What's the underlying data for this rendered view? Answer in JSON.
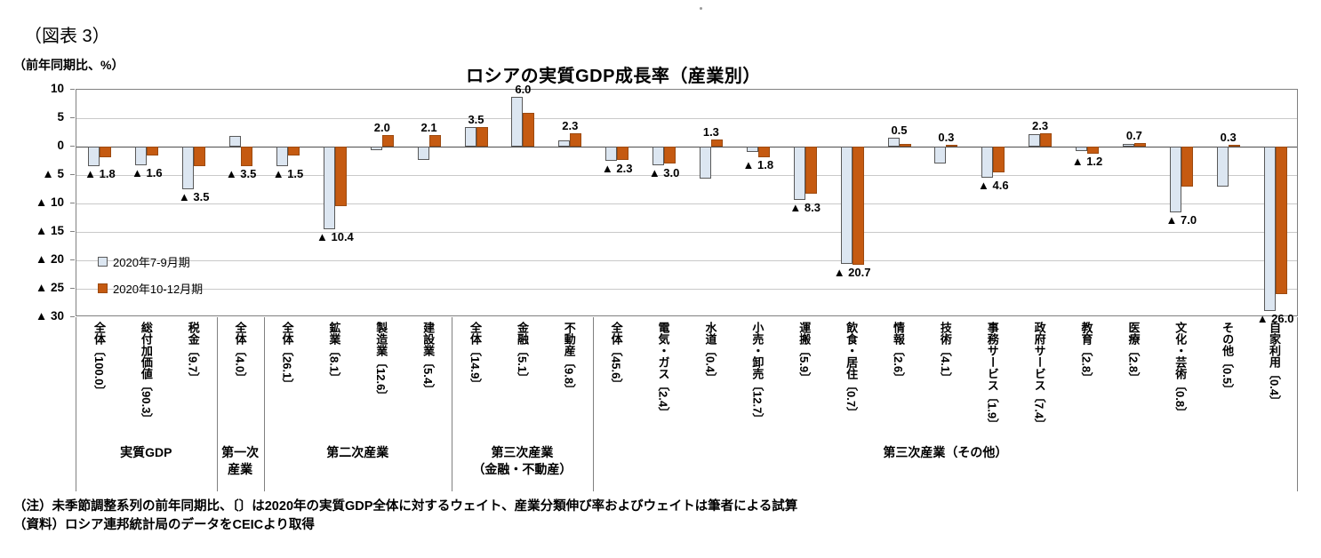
{
  "figure_label": "（図表 3）",
  "notes": [
    "（注）未季節調整系列の前年同期比、〔〕は2020年の実質GDP全体に対するウェイト、産業分類伸び率およびウェイトは筆者による試算",
    "（資料）ロシア連邦統計局のデータをCEICより取得"
  ],
  "chart_data": {
    "type": "bar",
    "title": "ロシアの実質GDP成長率（産業別）",
    "ylabel": "（前年同期比、%）",
    "xlabel": "",
    "ylim": [
      -30,
      10
    ],
    "yticks": [
      10,
      5,
      0,
      -5,
      -10,
      -15,
      -20,
      -25,
      -30
    ],
    "negative_marker": "▲",
    "grid": true,
    "legend_position": "inside-left",
    "categories": [
      "全体〔100.0〕",
      "総付加価値〔90.3〕",
      "税金〔9.7〕",
      "全体〔4.0〕",
      "全体〔26.1〕",
      "鉱業〔8.1〕",
      "製造業〔12.6〕",
      "建設業〔5.4〕",
      "全体〔14.9〕",
      "金融〔5.1〕",
      "不動産〔9.8〕",
      "全体〔45.6〕",
      "電気・ガス〔2.4〕",
      "水道〔0.4〕",
      "小売・卸売〔12.7〕",
      "運搬〔5.9〕",
      "飲食・居住〔0.7〕",
      "情報〔2.6〕",
      "技術〔4.1〕",
      "事務サービス〔1.9〕",
      "政府サービス〔7.4〕",
      "教育〔2.8〕",
      "医療〔2.8〕",
      "文化・芸術〔0.8〕",
      "その他〔0.5〕",
      "自家利用〔0.4〕"
    ],
    "series": [
      {
        "name": "2020年7-9月期",
        "color": "#dce6f1",
        "border": "#595959",
        "values": [
          -3.4,
          -3.2,
          -7.5,
          1.9,
          -3.5,
          -14.5,
          -0.6,
          -2.3,
          3.4,
          8.7,
          1.1,
          -2.5,
          -3.2,
          -5.6,
          -1.0,
          -9.4,
          -20.6,
          1.6,
          -3.0,
          -5.5,
          2.2,
          -0.8,
          0.5,
          -11.6,
          -7.0,
          -28.9
        ]
      },
      {
        "name": "2020年10-12月期",
        "color": "#c55a11",
        "border": "#9c4a10",
        "values": [
          -1.8,
          -1.6,
          -3.5,
          -3.5,
          -1.5,
          -10.4,
          2.0,
          2.1,
          3.5,
          6.0,
          2.3,
          -2.3,
          -3.0,
          1.3,
          -1.8,
          -8.3,
          -20.7,
          0.5,
          0.3,
          -4.6,
          2.3,
          -1.2,
          0.7,
          -7.0,
          0.3,
          -26.0
        ]
      }
    ],
    "data_labels": [
      "▲ 1.8",
      "▲ 1.6",
      "▲ 3.5",
      "▲ 3.5",
      "▲ 1.5",
      "▲ 10.4",
      "2.0",
      "2.1",
      "3.5",
      "6.0",
      "2.3",
      "▲ 2.3",
      "▲ 3.0",
      "1.3",
      "▲ 1.8",
      "▲ 8.3",
      "▲ 20.7",
      "0.5",
      "0.3",
      "▲ 4.6",
      "2.3",
      "▲ 1.2",
      "0.7",
      "▲ 7.0",
      "0.3",
      "▲ 26.0"
    ],
    "groups": [
      {
        "label": "実質GDP",
        "span": 3
      },
      {
        "label": "第一次\n産業",
        "span": 1
      },
      {
        "label": "第二次産業",
        "span": 4
      },
      {
        "label": "第三次産業\n（金融・不動産）",
        "span": 3
      },
      {
        "label": "第三次産業（その他）",
        "span": 15
      }
    ]
  }
}
